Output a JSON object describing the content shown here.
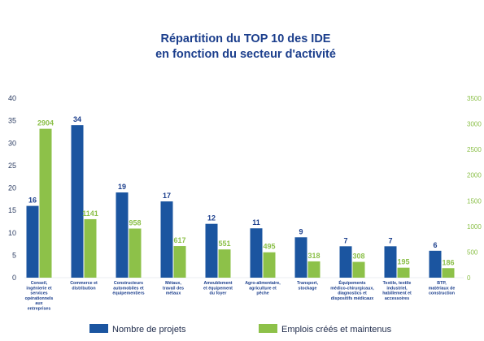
{
  "chart_data": {
    "type": "bar",
    "title_lines": [
      "Répartition du TOP 10 des IDE",
      "en fonction du secteur d'activité"
    ],
    "categories": [
      [
        "Conseil,",
        "ingénierie et",
        "services",
        "opérationnels",
        "aux",
        "entreprises"
      ],
      [
        "Commerce et",
        "distribution"
      ],
      [
        "Constructeurs",
        "automobiles et",
        "équipementiers"
      ],
      [
        "Métaux,",
        "travail des",
        "métaux"
      ],
      [
        "Ameublement",
        "et équipement",
        "du foyer"
      ],
      [
        "Agro-alimentaire,",
        "agriculture et",
        "pêche"
      ],
      [
        "Transport,",
        "stockage"
      ],
      [
        "Équipements",
        "médico-chirurgicaux,",
        "diagnostics et",
        "dispositifs médicaux"
      ],
      [
        "Textile, textile",
        "industriel,",
        "habillement et",
        "accessoires"
      ],
      [
        "BTP,",
        "matériaux de",
        "construction"
      ]
    ],
    "series": [
      {
        "name": "Nombre de projets",
        "axis": "left",
        "color": "#1b55a0",
        "values": [
          16,
          34,
          19,
          17,
          12,
          11,
          9,
          7,
          7,
          6
        ]
      },
      {
        "name": "Emplois créés et maintenus",
        "axis": "right",
        "color": "#8dc149",
        "values": [
          2904,
          1141,
          958,
          617,
          551,
          495,
          318,
          308,
          195,
          186
        ]
      }
    ],
    "y_left": {
      "range": [
        0,
        40
      ],
      "ticks": [
        "0",
        "5",
        "10",
        "15",
        "20",
        "25",
        "30",
        "35",
        "40"
      ]
    },
    "y_right": {
      "range": [
        0,
        3500
      ],
      "ticks": [
        "0",
        "500",
        "1000",
        "1500",
        "2000",
        "2500",
        "3000",
        "3500"
      ]
    },
    "grid": false,
    "legend_position": "bottom"
  }
}
